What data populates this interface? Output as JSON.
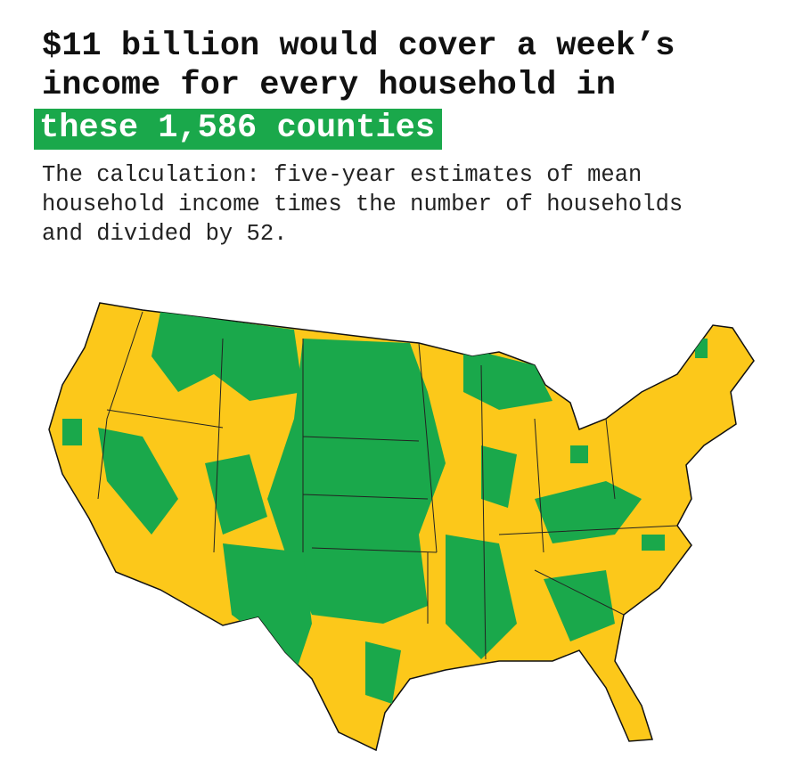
{
  "header": {
    "title": [
      "$11 billion would cover a week’s",
      "income for every household in"
    ],
    "highlight": "these 1,586 counties"
  },
  "description": [
    "The calculation: five-year estimates of mean",
    "household income times the number of households",
    "and divided by 52."
  ]
}
